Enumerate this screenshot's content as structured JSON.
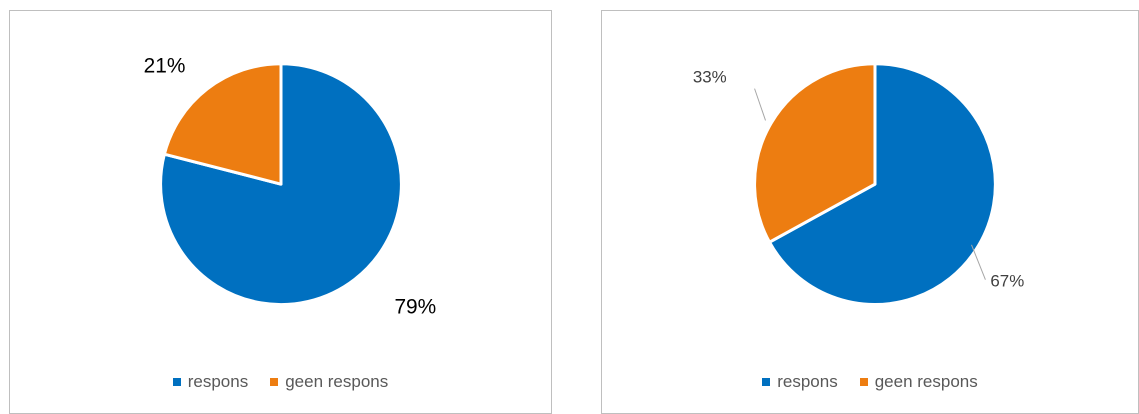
{
  "chart_data": [
    {
      "type": "pie",
      "categories": [
        "respons",
        "geen respons"
      ],
      "values": [
        79,
        21
      ],
      "data_labels": [
        "79%",
        "21%"
      ],
      "colors": [
        "#0070c0",
        "#ed7d11"
      ],
      "legend": {
        "position": "bottom",
        "items": [
          "respons",
          "geen respons"
        ]
      }
    },
    {
      "type": "pie",
      "categories": [
        "respons",
        "geen respons"
      ],
      "values": [
        67,
        33
      ],
      "data_labels": [
        "67%",
        "33%"
      ],
      "colors": [
        "#0070c0",
        "#ed7d11"
      ],
      "legend": {
        "position": "bottom",
        "items": [
          "respons",
          "geen respons"
        ]
      }
    }
  ]
}
